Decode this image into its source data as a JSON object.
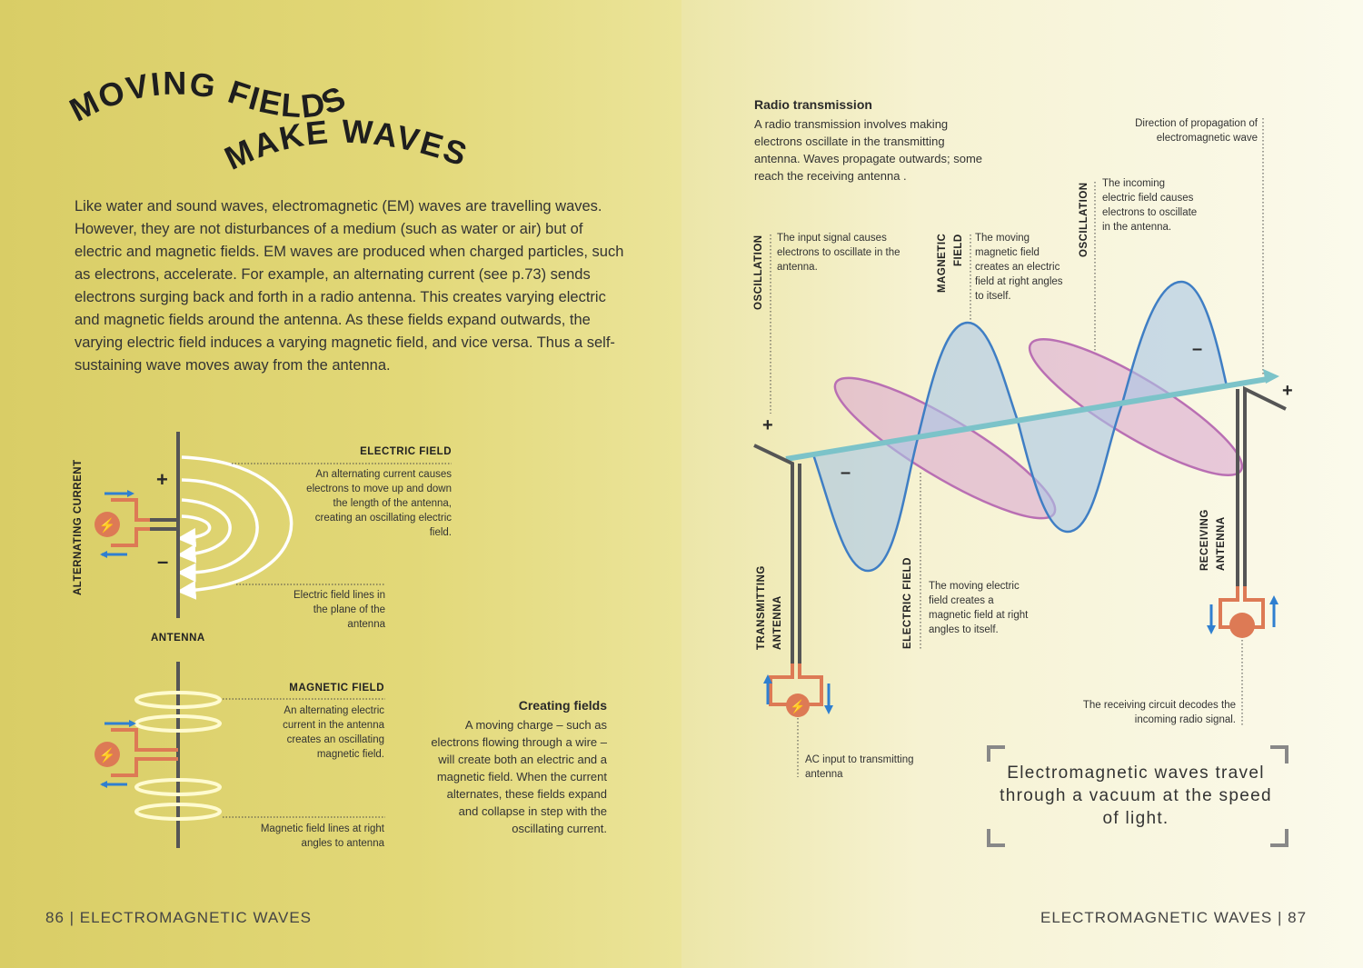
{
  "left_page": {
    "title_line1": "MOVING FIELDS",
    "title_line2": "MAKE WAVES",
    "intro": "Like water and sound waves, electromagnetic (EM) waves are travelling waves. However, they are not disturbances of a medium (such as water or air) but of electric and magnetic fields. EM waves are produced when charged particles, such as electrons, accelerate. For example, an alternating current (see p.73) sends electrons surging back and forth in a radio antenna. This creates varying electric and magnetic fields around the antenna. As these fields expand outwards, the varying electric field induces a varying magnetic field, and vice versa. Thus a self-sustaining wave moves away from the antenna.",
    "electric_diagram": {
      "side_label": "ALTERNATING CURRENT",
      "plus": "+",
      "minus": "–",
      "heading": "ELECTRIC FIELD",
      "desc": "An alternating current causes electrons to move up and down the length of the antenna, creating an oscillating electric field.",
      "lines_note": "Electric field lines in the plane of the antenna",
      "antenna_label": "ANTENNA"
    },
    "magnetic_diagram": {
      "heading": "MAGNETIC FIELD",
      "desc": "An alternating electric current in the antenna creates an oscillating magnetic field.",
      "lines_note": "Magnetic field lines at right angles to antenna"
    },
    "creating_fields": {
      "heading": "Creating fields",
      "text": "A moving charge – such as electrons flowing through a wire – will create both an electric and a magnetic field. When the current alternates, these fields expand and collapse in step with the oscillating current."
    },
    "footer": "86 | ELECTROMAGNETIC WAVES"
  },
  "right_page": {
    "radio": {
      "heading": "Radio transmission",
      "text": "A radio transmission involves making electrons oscillate in the transmitting antenna. Waves propagate outwards; some reach the receiving antenna ."
    },
    "propagation_note": "Direction of propagation of electromagnetic wave",
    "oscillation1": {
      "label": "OSCILLATION",
      "text": "The input signal causes electrons to oscillate in the antenna."
    },
    "magnetic_field": {
      "label1": "MAGNETIC",
      "label2": "FIELD",
      "text": "The moving magnetic field creates an electric field at right angles to itself."
    },
    "oscillation2": {
      "label": "OSCILLATION",
      "text": "The incoming electric field causes electrons to oscillate in the antenna."
    },
    "electric_field": {
      "label": "ELECTRIC FIELD",
      "text": "The moving electric field creates a magnetic field at right angles to itself."
    },
    "transmitting_label1": "TRANSMITTING",
    "transmitting_label2": "ANTENNA",
    "receiving_label1": "RECEIVING",
    "receiving_label2": "ANTENNA",
    "ac_input": "AC input to transmitting antenna",
    "receiving_circuit": "The receiving circuit decodes the incoming radio signal.",
    "plus": "+",
    "minus": "–",
    "quote": "Electromagnetic waves travel through a vacuum at the speed of light.",
    "footer": "ELECTROMAGNETIC WAVES | 87"
  },
  "colors": {
    "electric_wave": "#3f7ec4",
    "magnetic_wave": "#b96fb3",
    "propagation_axis": "#7cc3c9",
    "circuit": "#dd7a55",
    "antenna": "#555555",
    "arrows": "#2f7fd0"
  },
  "icons": [
    "lightning-icon",
    "arrow-right-icon",
    "arrow-left-icon",
    "arrow-up-icon",
    "arrow-down-icon"
  ]
}
